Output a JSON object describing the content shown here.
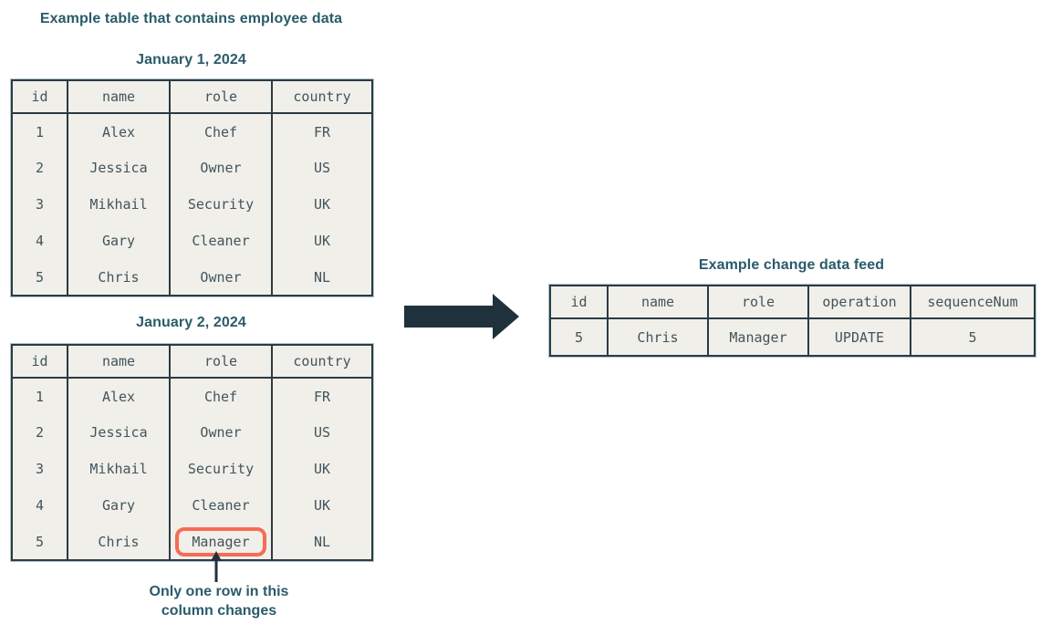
{
  "diagram_title": "Example table that contains employee data",
  "colors": {
    "heading_text": "#2a5b6a",
    "table_border": "#2a3b44",
    "table_background": "#f1efe9",
    "cell_text": "#42545c",
    "highlight_outline": "#f66c55",
    "arrow_fill": "#1f323c"
  },
  "table_jan1": {
    "title": "January 1, 2024",
    "headers": [
      "id",
      "name",
      "role",
      "country"
    ],
    "rows": [
      [
        "1",
        "Alex",
        "Chef",
        "FR"
      ],
      [
        "2",
        "Jessica",
        "Owner",
        "US"
      ],
      [
        "3",
        "Mikhail",
        "Security",
        "UK"
      ],
      [
        "4",
        "Gary",
        "Cleaner",
        "UK"
      ],
      [
        "5",
        "Chris",
        "Owner",
        "NL"
      ]
    ]
  },
  "table_jan2": {
    "title": "January 2, 2024",
    "headers": [
      "id",
      "name",
      "role",
      "country"
    ],
    "rows": [
      [
        "1",
        "Alex",
        "Chef",
        "FR"
      ],
      [
        "2",
        "Jessica",
        "Owner",
        "US"
      ],
      [
        "3",
        "Mikhail",
        "Security",
        "UK"
      ],
      [
        "4",
        "Gary",
        "Cleaner",
        "UK"
      ],
      [
        "5",
        "Chris",
        "Manager",
        "NL"
      ]
    ],
    "highlight_cell": {
      "row": 4,
      "col": 2,
      "value": "Manager"
    }
  },
  "annotation": {
    "line1": "Only one row in this",
    "line2": "column changes"
  },
  "change_feed": {
    "title": "Example change data feed",
    "headers": [
      "id",
      "name",
      "role",
      "operation",
      "sequenceNum"
    ],
    "rows": [
      [
        "5",
        "Chris",
        "Manager",
        "UPDATE",
        "5"
      ]
    ]
  }
}
